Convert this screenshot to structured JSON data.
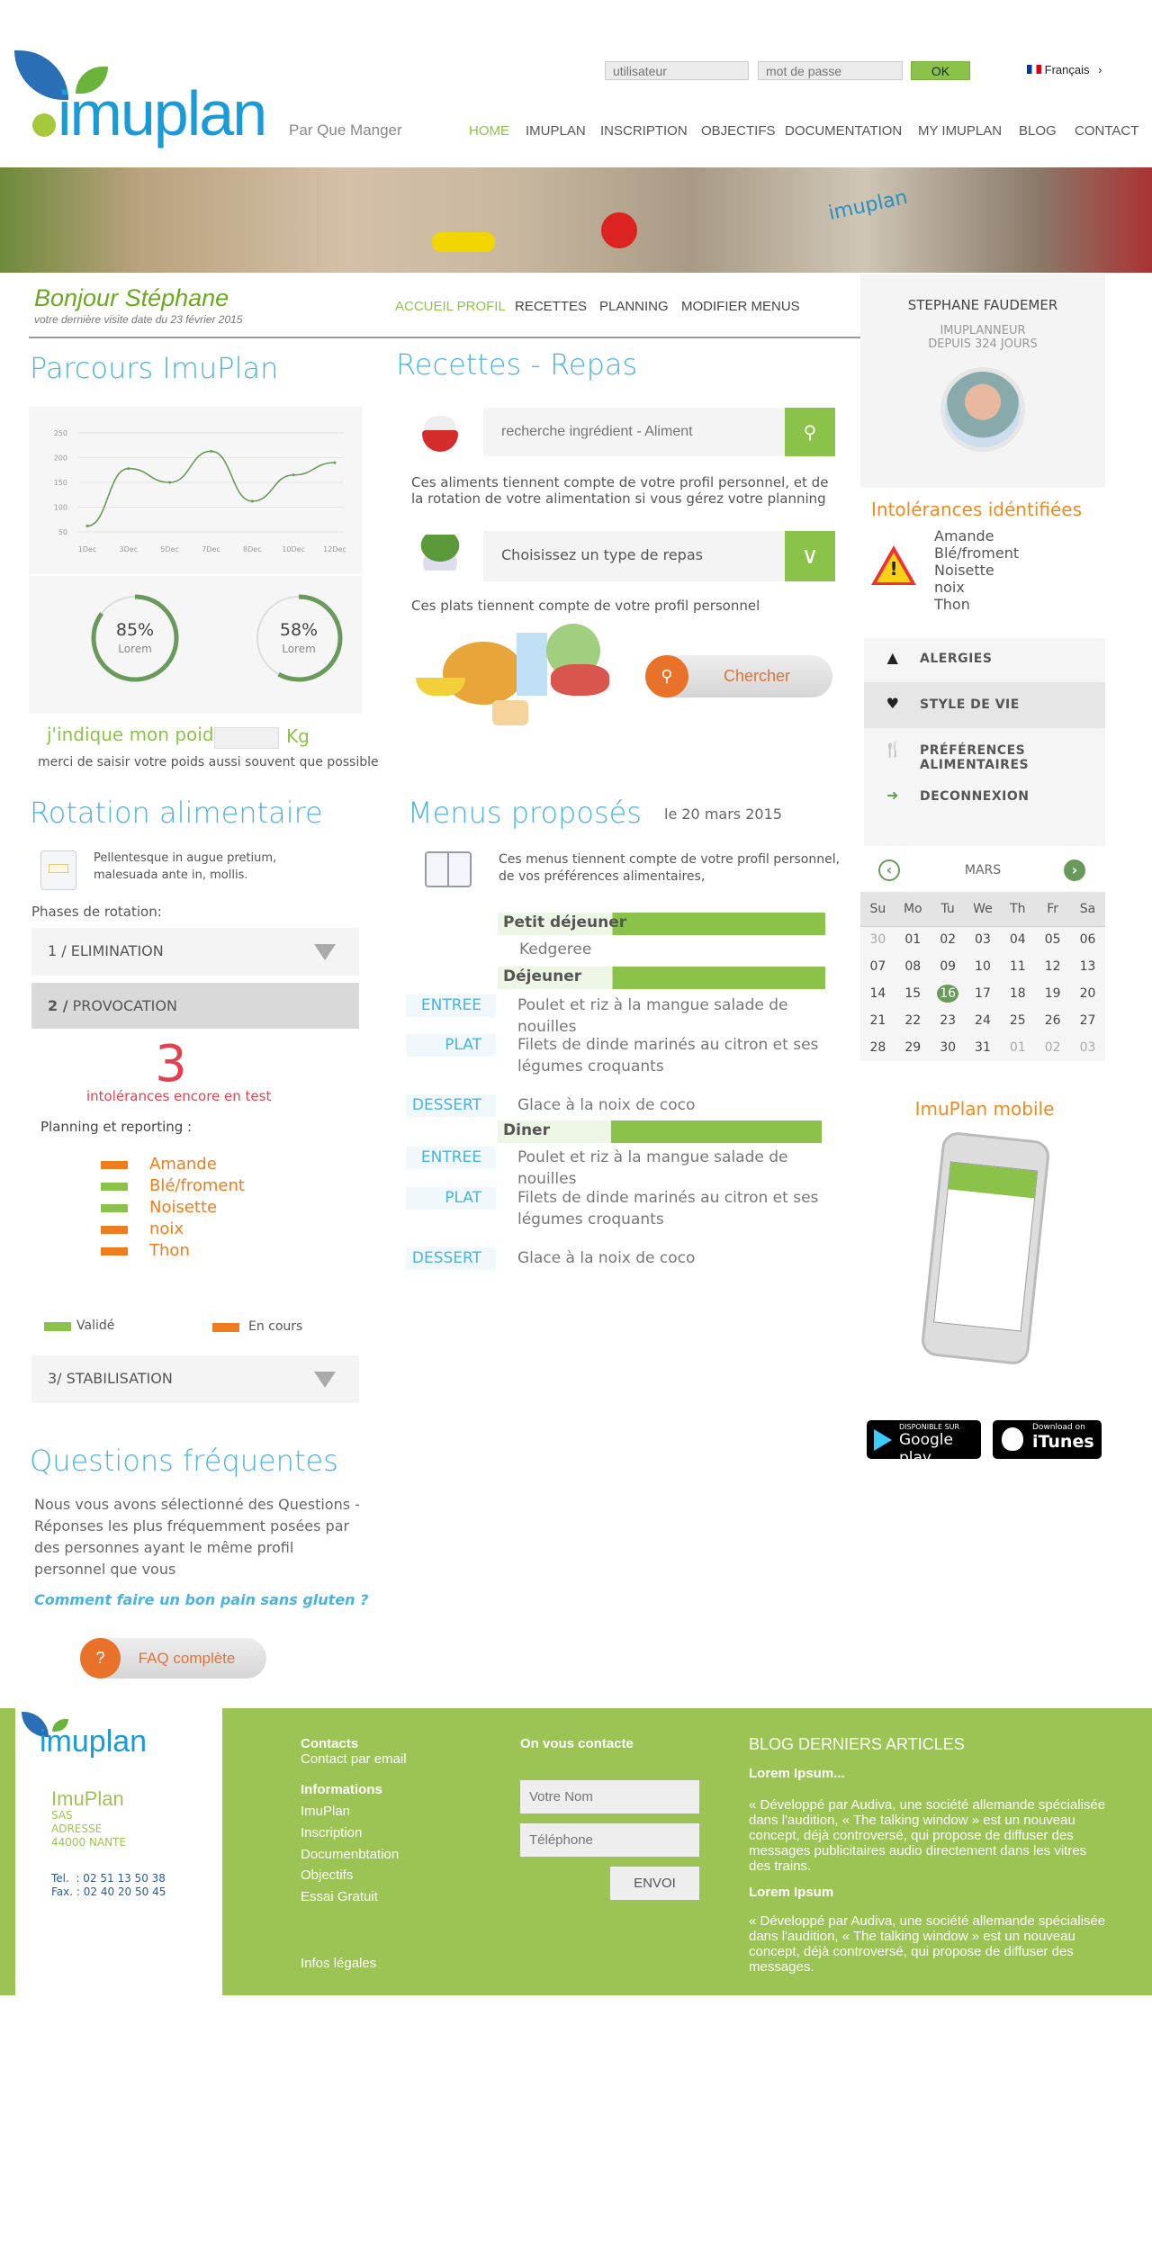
{
  "header": {
    "username_placeholder": "utilisateur",
    "password_placeholder": "mot de passe",
    "ok_label": "OK",
    "language": "Français",
    "tagline": "Par Que Manger",
    "logo_text": "imuplan",
    "nav": [
      "HOME",
      "IMUPLAN",
      "INSCRIPTION",
      "OBJECTIFS",
      "DOCUMENTATION",
      "MY IMUPLAN",
      "BLOG",
      "CONTACT"
    ],
    "active_nav": "HOME"
  },
  "banner": {
    "logo_text": "imuplan"
  },
  "greeting": {
    "title": "Bonjour Stéphane",
    "subtitle": "votre dernière visite date du 23 février 2015"
  },
  "subnav": [
    "ACCUEIL PROFIL",
    "RECETTES",
    "PLANNING",
    "MODIFIER MENUS"
  ],
  "profile": {
    "name": "STEPHANE FAUDEMER",
    "role": "IMUPLANNEUR",
    "since": "DEPUIS 324 JOURS"
  },
  "parcours": {
    "title": "Parcours ImuPlan",
    "gauges": [
      {
        "value": "85%",
        "label": "Lorem",
        "fraction": 0.85
      },
      {
        "value": "58%",
        "label": "Lorem",
        "fraction": 0.58
      }
    ],
    "weight_label": "j'indique mon poids",
    "weight_unit": "Kg",
    "weight_value": "",
    "weight_hint": "merci de saisir votre poids aussi souvent que possible"
  },
  "chart_data": {
    "type": "line",
    "categories": [
      "1Dec",
      "3Dec",
      "5Dec",
      "7Dec",
      "8Dec",
      "10Dec",
      "12Dec"
    ],
    "values": [
      62,
      178,
      150,
      213,
      112,
      165,
      190
    ],
    "yticks": [
      50,
      100,
      150,
      200,
      250
    ],
    "ylim": [
      50,
      250
    ],
    "grid": true,
    "color": "#6a9a5b"
  },
  "recettes": {
    "title": "Recettes - Repas",
    "search_placeholder": "recherche ingrédient - Aliment",
    "search_note": "Ces aliments tiennent compte de votre profil personnel, et de la rotation de votre alimentation si vous gérez votre planning",
    "select_value": "Choisissez un type de repas",
    "select_note": "Ces plats tiennent compte de votre profil personnel",
    "search_button": "Chercher"
  },
  "rotation": {
    "title": "Rotation alimentaire",
    "intro": "Pellentesque in augue pretium, malesuada ante in, mollis.",
    "phases_label": "Phases de rotation:",
    "phase1": "1 / ELIMINATION",
    "phase2_num": "2 /",
    "phase2": "PROVOCATION",
    "count": "3",
    "count_label": "intolérances encore en test",
    "planning_label": "Planning et reporting :",
    "items": [
      {
        "name": "Amande",
        "status": "En cours"
      },
      {
        "name": "Blé/froment",
        "status": "Validé"
      },
      {
        "name": "Noisette",
        "status": "Validé"
      },
      {
        "name": "noix",
        "status": "En cours"
      },
      {
        "name": "Thon",
        "status": "En cours"
      }
    ],
    "legend_valid": "Validé",
    "legend_progress": "En cours",
    "phase3": "3/ STABILISATION",
    "colors": {
      "valid": "#8bc34a",
      "progress": "#ee7d1f"
    }
  },
  "faq": {
    "title": "Questions fréquentes",
    "text": "Nous vous avons sélectionné des Questions - Réponses les plus fréquemment posées par des personnes ayant le même profil personnel que vous",
    "link": "Comment faire un bon pain sans gluten ?",
    "button": "FAQ complète"
  },
  "menus": {
    "title": "Menus proposés",
    "date": "le 20 mars 2015",
    "intro": "Ces menus tiennent compte de votre profil personnel, de vos préférences alimentaires,",
    "breakfast": {
      "title": "Petit déjeuner",
      "dish": "Kedgeree"
    },
    "lunch": {
      "title": "Déjeuner",
      "entree_label": "ENTREE",
      "entree": "Poulet et riz à la mangue salade de nouilles",
      "plat_label": "PLAT",
      "plat": "Filets de dinde marinés au citron et ses légumes croquants",
      "dessert_label": "DESSERT",
      "dessert": "Glace à la noix de coco"
    },
    "dinner": {
      "title": "Diner",
      "entree_label": "ENTREE",
      "entree": "Poulet et riz à la mangue salade de nouilles",
      "plat_label": "PLAT",
      "plat": "Filets de dinde marinés au citron et ses légumes croquants",
      "dessert_label": "DESSERT",
      "dessert": "Glace à la noix de coco"
    }
  },
  "intolerances": {
    "title": "Intolérances idéntifiées",
    "items": [
      "Amande",
      "Blé/froment",
      "Noisette",
      "noix",
      "Thon"
    ]
  },
  "side_menu": [
    {
      "label": "ALERGIES",
      "icon": "warning-icon"
    },
    {
      "label": "STYLE DE VIE",
      "icon": "heart-icon",
      "active": true
    },
    {
      "label": "PRÉFÉRENCES ALIMENTAIRES",
      "icon": "cutlery-icon"
    },
    {
      "label": "DECONNEXION",
      "icon": "logout-icon"
    }
  ],
  "calendar": {
    "month": "MARS",
    "days": [
      "Su",
      "Mo",
      "Tu",
      "We",
      "Th",
      "Fr",
      "Sa"
    ],
    "selected": "16",
    "weeks": [
      [
        "30",
        "01",
        "02",
        "03",
        "04",
        "05",
        "06"
      ],
      [
        "07",
        "08",
        "09",
        "10",
        "11",
        "12",
        "13"
      ],
      [
        "14",
        "15",
        "16",
        "17",
        "18",
        "19",
        "20"
      ],
      [
        "21",
        "22",
        "23",
        "24",
        "25",
        "26",
        "27"
      ],
      [
        "28",
        "29",
        "30",
        "31",
        "01",
        "02",
        "03"
      ]
    ]
  },
  "mobile": {
    "title": "ImuPlan mobile",
    "google": "Google play",
    "google_small": "DISPONIBLE SUR",
    "itunes": "iTunes",
    "itunes_small": "Download on"
  },
  "footer": {
    "company": "ImuPlan",
    "sas": "SAS",
    "address": "ADRESSE",
    "city": "44000 NANTE",
    "tel": "Tel.  : 02 51 13 50 38",
    "fax": "Fax. : 02 40 20 50 45",
    "contacts_title": "Contacts",
    "contact_email": "Contact par email",
    "info_title": "Informations",
    "links": [
      "ImuPlan",
      "Inscription",
      "Documenbtation",
      "Objectifs",
      "Essai Gratuit"
    ],
    "legal": "Infos légales",
    "form_title": "On vous contacte",
    "name_placeholder": "Votre Nom",
    "phone_placeholder": "Téléphone",
    "send": "ENVOI",
    "blog_title": "BLOG DERNIERS ARTICLES",
    "articles": [
      {
        "title": "Lorem Ipsum...",
        "text": "« Développé par Audiva, une société allemande spécialisée dans l'audition, « The talking window » est un nouveau concept, déjà controversé, qui propose de diffuser des messages publicitaires audio directement dans les vitres des trains."
      },
      {
        "title": "Lorem Ipsum",
        "text": "« Développé par Audiva, une société allemande spécialisée dans l'audition, « The talking window » est un nouveau concept, déjà controversé, qui propose de diffuser des messages."
      }
    ]
  }
}
